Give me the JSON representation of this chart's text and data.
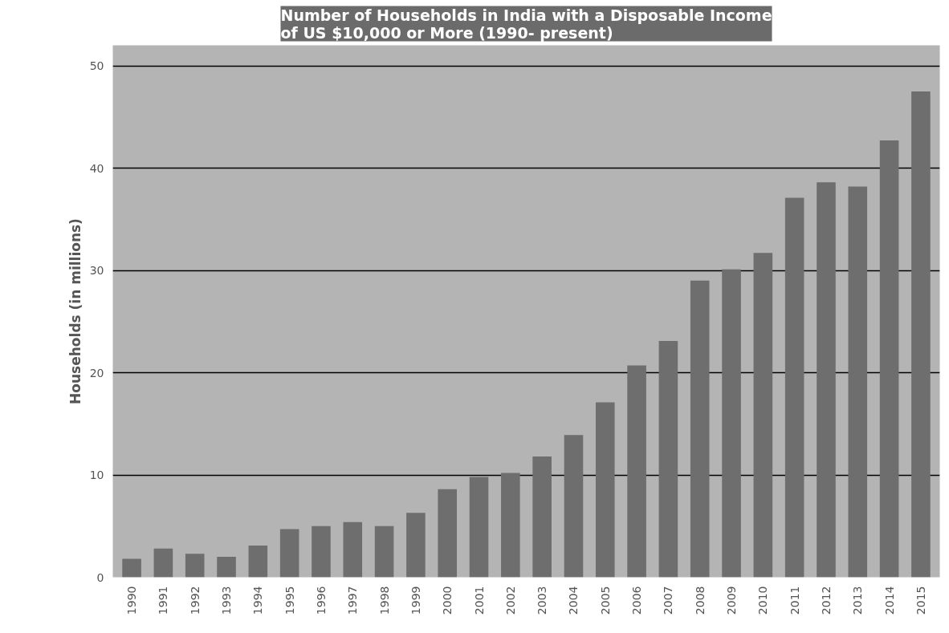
{
  "chart_data": {
    "type": "bar",
    "title": "Number of Households in India with a Disposable Income\nof  US $10,000 or More (1990- present)",
    "ylabel": "Households (in millions)",
    "categories": [
      "1990",
      "1991",
      "1992",
      "1993",
      "1994",
      "1995",
      "1996",
      "1997",
      "1998",
      "1999",
      "2000",
      "2001",
      "2002",
      "2003",
      "2004",
      "2005",
      "2006",
      "2007",
      "2008",
      "2009",
      "2010",
      "2011",
      "2012",
      "2013",
      "2014",
      "2015"
    ],
    "values": [
      1.8,
      2.8,
      2.3,
      2.0,
      3.1,
      4.7,
      5.0,
      5.4,
      5.0,
      6.3,
      8.6,
      9.8,
      10.2,
      11.8,
      13.9,
      17.1,
      20.7,
      23.1,
      29.0,
      30.1,
      31.7,
      37.1,
      38.6,
      38.2,
      42.7,
      47.5
    ],
    "color": "#6e6e6e",
    "ylim": [
      0,
      52
    ],
    "yticks": [
      0,
      10,
      20,
      30,
      40,
      50
    ],
    "grid": "y"
  }
}
